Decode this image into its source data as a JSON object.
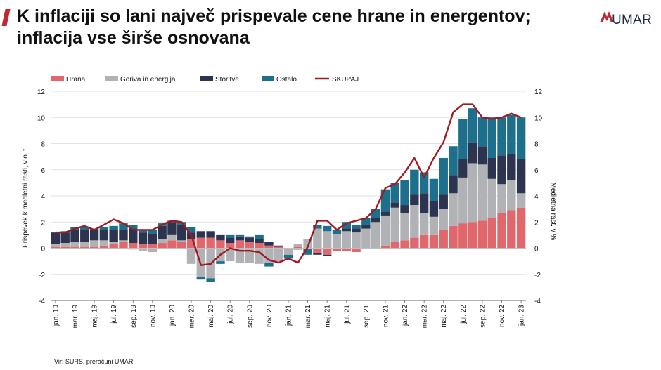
{
  "header": {
    "title": "K inflaciji so lani največ prispevale cene hrane in energentov; inflacija vse širše osnovana",
    "logo_text": "UMAR"
  },
  "footer": {
    "source": "Vir: SURS, preračuni UMAR."
  },
  "colors": {
    "hrana": "#e0676b",
    "goriva": "#b0b2b5",
    "storitve": "#2c3450",
    "ostalo": "#1d6f8b",
    "skupaj": "#a01a22",
    "accent": "#c0282f"
  },
  "chart_data": {
    "type": "bar",
    "stacked": true,
    "title": "",
    "ylabel": "Prispevek k medletni rasti, v o. t.",
    "y2label": "Medletna rast, v %",
    "ylim": [
      -4,
      12
    ],
    "y2lim": [
      -4,
      12
    ],
    "yticks": [
      "12",
      "10",
      "8",
      "6",
      "4",
      "2",
      "0",
      "-2",
      "-4"
    ],
    "y2ticks": [
      "12",
      "10",
      "8",
      "6",
      "4",
      "2",
      "0",
      "-2",
      "-4"
    ],
    "legend": [
      "Hrana",
      "Goriva in energija",
      "Storitve",
      "Ostalo",
      "SKUPAJ"
    ],
    "legend_position": "top",
    "tick_labels": [
      "jan. 19",
      "mar. 19",
      "maj. 19",
      "jul. 19",
      "sep. 19",
      "nov. 19",
      "jan. 20",
      "mar. 20",
      "maj. 20",
      "jul. 20",
      "sep. 20",
      "nov. 20",
      "jan. 21",
      "mar. 21",
      "maj. 21",
      "jul. 21",
      "sep. 21",
      "nov. 21",
      "jan. 22",
      "mar. 22",
      "maj. 22",
      "jul. 22",
      "sep. 22",
      "nov. 22",
      "jan. 23"
    ],
    "months": [
      "jan. 19",
      "feb. 19",
      "mar. 19",
      "apr. 19",
      "maj. 19",
      "jun. 19",
      "jul. 19",
      "avg. 19",
      "sep. 19",
      "okt. 19",
      "nov. 19",
      "dec. 19",
      "jan. 20",
      "feb. 20",
      "mar. 20",
      "apr. 20",
      "maj. 20",
      "jun. 20",
      "jul. 20",
      "avg. 20",
      "sep. 20",
      "okt. 20",
      "nov. 20",
      "dec. 20",
      "jan. 21",
      "feb. 21",
      "mar. 21",
      "apr. 21",
      "maj. 21",
      "jun. 21",
      "jul. 21",
      "avg. 21",
      "sep. 21",
      "okt. 21",
      "nov. 21",
      "dec. 21",
      "jan. 22",
      "feb. 22",
      "mar. 22",
      "apr. 22",
      "maj. 22",
      "jun. 22",
      "jul. 22",
      "avg. 22",
      "sep. 22",
      "okt. 22",
      "nov. 22",
      "dec. 22",
      "jan. 23"
    ],
    "series": [
      {
        "name": "Hrana",
        "key": "hrana",
        "values": [
          0.1,
          0.1,
          0.1,
          0.1,
          0.1,
          0.2,
          0.3,
          0.5,
          0.4,
          0.3,
          0.3,
          0.4,
          0.6,
          0.5,
          0.7,
          0.8,
          0.8,
          0.6,
          0.4,
          0.6,
          0.5,
          0.4,
          0.2,
          0.1,
          -0.1,
          0.1,
          0.0,
          -0.4,
          -0.5,
          -0.2,
          -0.2,
          -0.3,
          0.0,
          0.0,
          0.2,
          0.5,
          0.6,
          0.8,
          1.0,
          1.0,
          1.4,
          1.7,
          1.9,
          2.0,
          2.1,
          2.3,
          2.7,
          2.9,
          3.1
        ]
      },
      {
        "name": "Goriva in energija",
        "key": "goriva",
        "values": [
          0.2,
          0.3,
          0.4,
          0.4,
          0.5,
          0.4,
          0.2,
          0.1,
          -0.1,
          -0.2,
          -0.3,
          0.3,
          0.4,
          0.1,
          -1.2,
          -2.2,
          -2.3,
          -1.0,
          -1.0,
          -1.1,
          -1.1,
          -1.2,
          -1.1,
          -1.0,
          -0.4,
          0.2,
          0.7,
          1.5,
          1.3,
          1.1,
          1.3,
          1.2,
          1.5,
          2.0,
          2.3,
          2.6,
          2.1,
          2.5,
          1.7,
          1.4,
          1.6,
          2.5,
          3.5,
          4.5,
          4.3,
          3.0,
          2.2,
          2.3,
          1.1
        ]
      },
      {
        "name": "Storitve",
        "key": "storitve",
        "values": [
          0.9,
          0.8,
          0.9,
          0.9,
          0.8,
          0.8,
          0.9,
          0.8,
          1.1,
          0.9,
          0.8,
          1.0,
          1.0,
          1.2,
          0.5,
          0.5,
          0.5,
          0.4,
          0.4,
          0.3,
          0.3,
          0.3,
          0.3,
          0.1,
          0.0,
          -0.1,
          -0.1,
          -0.1,
          -0.1,
          0.0,
          0.2,
          0.3,
          0.3,
          0.3,
          0.3,
          0.4,
          0.6,
          0.8,
          1.5,
          1.2,
          1.1,
          1.4,
          1.4,
          1.6,
          1.4,
          1.6,
          2.2,
          2.0,
          2.6
        ]
      },
      {
        "name": "Ostalo",
        "key": "ostalo",
        "values": [
          0.0,
          0.1,
          0.2,
          0.2,
          0.1,
          0.2,
          0.3,
          0.5,
          0.3,
          0.2,
          0.3,
          0.2,
          0.1,
          0.2,
          0.4,
          -0.2,
          -0.3,
          -0.2,
          0.2,
          0.1,
          0.1,
          0.3,
          -0.3,
          0.0,
          -0.3,
          0.0,
          -0.4,
          0.3,
          0.4,
          0.3,
          0.5,
          0.3,
          0.5,
          0.7,
          1.7,
          1.5,
          1.9,
          1.9,
          1.6,
          1.7,
          2.8,
          2.2,
          3.1,
          2.6,
          2.2,
          3.1,
          2.9,
          3.0,
          3.2
        ]
      },
      {
        "name": "SKUPAJ",
        "key": "skupaj",
        "type": "line",
        "values": [
          1.2,
          1.2,
          1.5,
          1.7,
          1.4,
          1.8,
          2.2,
          1.9,
          1.4,
          1.4,
          1.4,
          1.8,
          2.1,
          2.0,
          1.0,
          -1.3,
          -1.2,
          -0.5,
          0.0,
          -0.2,
          -0.2,
          -0.3,
          -0.9,
          -1.1,
          -0.8,
          -1.1,
          0.1,
          2.1,
          2.1,
          1.4,
          1.9,
          2.1,
          2.3,
          3.0,
          4.6,
          4.9,
          5.8,
          6.9,
          5.4,
          6.9,
          8.1,
          10.4,
          11.0,
          11.0,
          10.0,
          9.9,
          10.0,
          10.3,
          10.0
        ]
      }
    ]
  }
}
